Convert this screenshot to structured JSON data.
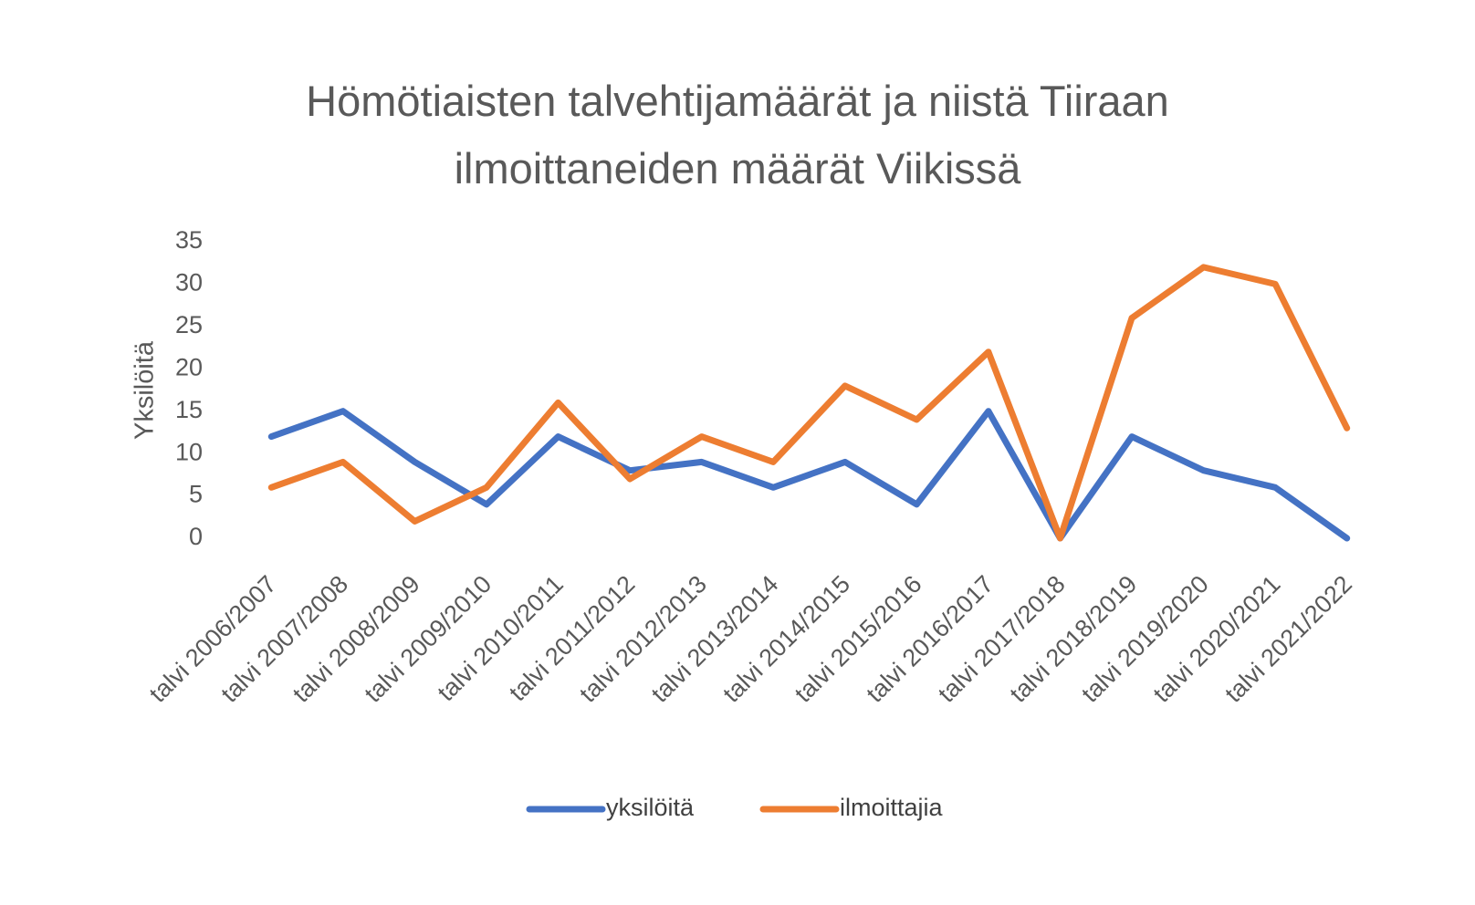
{
  "chart_data": {
    "type": "line",
    "title_lines": [
      "Hömötiaisten talvehtijamäärät ja niistä Tiiraan",
      "ilmoittaneiden määrät Viikissä"
    ],
    "xlabel": "",
    "ylabel": "Yksilöitä",
    "ylim": [
      0,
      35
    ],
    "yticks": [
      0,
      5,
      10,
      15,
      20,
      25,
      30,
      35
    ],
    "grid": false,
    "legend_position": "bottom",
    "categories": [
      "talvi 2006/2007",
      "talvi 2007/2008",
      "talvi 2008/2009",
      "talvi 2009/2010",
      "talvi 2010/2011",
      "talvi 2011/2012",
      "talvi 2012/2013",
      "talvi 2013/2014",
      "talvi 2014/2015",
      "talvi 2015/2016",
      "talvi 2016/2017",
      "talvi 2017/2018",
      "talvi 2018/2019",
      "talvi 2019/2020",
      "talvi 2020/2021",
      "talvi 2021/2022"
    ],
    "series": [
      {
        "name": "yksilöitä",
        "color": "#4472C4",
        "values": [
          12,
          15,
          9,
          4,
          12,
          8,
          9,
          6,
          9,
          4,
          15,
          0,
          12,
          8,
          6,
          0
        ]
      },
      {
        "name": "ilmoittajia",
        "color": "#ED7D31",
        "values": [
          6,
          9,
          2,
          6,
          16,
          7,
          12,
          9,
          18,
          14,
          22,
          0,
          26,
          32,
          30,
          13
        ]
      }
    ]
  }
}
